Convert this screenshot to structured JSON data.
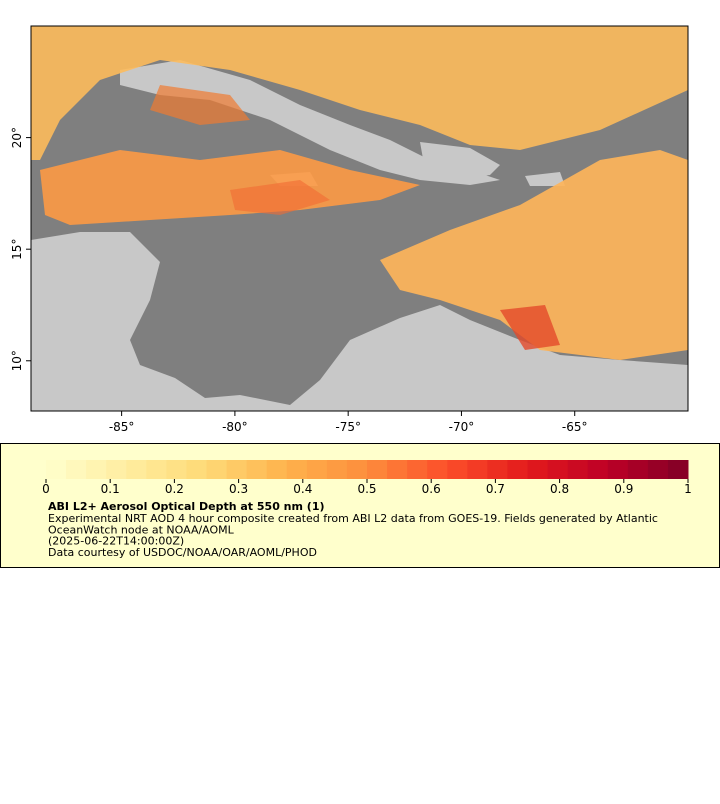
{
  "map": {
    "lon_range": [
      -89,
      -60
    ],
    "lat_range": [
      7.75,
      25
    ],
    "lon_ticks": [
      {
        "value": -85,
        "label": "-85°"
      },
      {
        "value": -80,
        "label": "-80°"
      },
      {
        "value": -75,
        "label": "-75°"
      },
      {
        "value": -70,
        "label": "-70°"
      },
      {
        "value": -65,
        "label": "-65°"
      }
    ],
    "lat_ticks": [
      {
        "value": 20,
        "label": "20°"
      },
      {
        "value": 15,
        "label": "15°"
      },
      {
        "value": 10,
        "label": "10°"
      }
    ]
  },
  "colorbar": {
    "limits": [
      0,
      1
    ],
    "ticks": [
      0,
      0.1,
      0.2,
      0.3,
      0.4,
      0.5,
      0.6,
      0.7,
      0.8,
      0.9,
      1
    ],
    "colormap": [
      "#ffffcc",
      "#ffeda0",
      "#fed976",
      "#feb24c",
      "#fd8d3c",
      "#fc4e2a",
      "#e31a1c",
      "#bd0026",
      "#800026"
    ]
  },
  "caption": {
    "title": "ABI L2+ Aerosol Optical Depth at 550 nm (1)",
    "lines": [
      "Experimental NRT AOD 4 hour composite created from ABI L2 data from GOES-19. Fields generated by Atlantic",
      "OceanWatch node at NOAA/AOML",
      "(2025-06-22T14:00:00Z)",
      "Data courtesy of USDOC/NOAA/OAR/AOML/PHOD"
    ]
  }
}
